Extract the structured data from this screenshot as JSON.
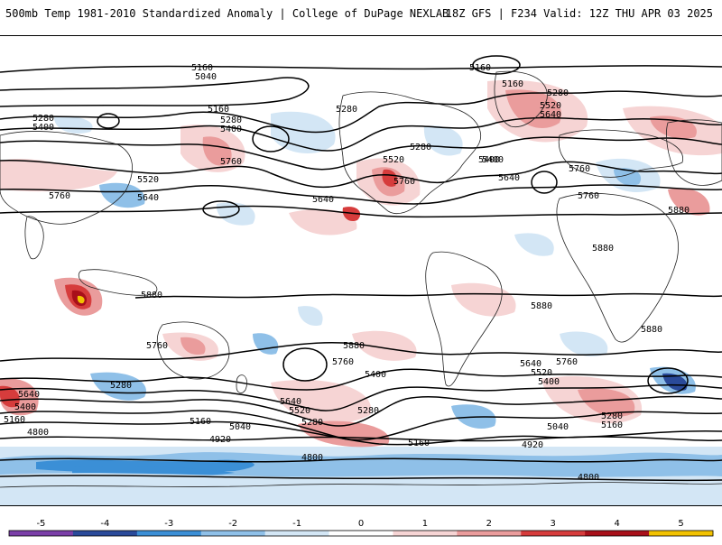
{
  "header": {
    "title_left": "500mb Temp 1981-2010 Standardized Anomaly | College of DuPage NEXLAB",
    "title_right": "18Z GFS | F234 Valid: 12Z THU APR 03 2025"
  },
  "map": {
    "height_labels": [
      {
        "text": "5160"
      },
      {
        "text": "5040"
      },
      {
        "text": "5160"
      },
      {
        "text": "5160"
      },
      {
        "text": "5280"
      },
      {
        "text": "5520"
      },
      {
        "text": "5640"
      },
      {
        "text": "5280"
      },
      {
        "text": "5400"
      },
      {
        "text": "5280"
      },
      {
        "text": "5400"
      },
      {
        "text": "5520"
      },
      {
        "text": "5640"
      },
      {
        "text": "5760"
      },
      {
        "text": "5160"
      },
      {
        "text": "5280"
      },
      {
        "text": "5400"
      },
      {
        "text": "5760"
      },
      {
        "text": "5280"
      },
      {
        "text": "5520"
      },
      {
        "text": "5760"
      },
      {
        "text": "5400"
      },
      {
        "text": "5640"
      },
      {
        "text": "5640"
      },
      {
        "text": "5760"
      },
      {
        "text": "5760"
      },
      {
        "text": "5880"
      },
      {
        "text": "5880"
      },
      {
        "text": "5880"
      },
      {
        "text": "5880"
      },
      {
        "text": "5880"
      },
      {
        "text": "5760"
      },
      {
        "text": "5880"
      },
      {
        "text": "5760"
      },
      {
        "text": "5640"
      },
      {
        "text": "5760"
      },
      {
        "text": "5520"
      },
      {
        "text": "5400"
      },
      {
        "text": "5280"
      },
      {
        "text": "5400"
      },
      {
        "text": "5640"
      },
      {
        "text": "5520"
      },
      {
        "text": "5280"
      },
      {
        "text": "5280"
      },
      {
        "text": "5160"
      },
      {
        "text": "5040"
      },
      {
        "text": "5160"
      },
      {
        "text": "5040"
      },
      {
        "text": "4920"
      },
      {
        "text": "4920"
      },
      {
        "text": "4800"
      },
      {
        "text": "4800"
      },
      {
        "text": "4800"
      },
      {
        "text": "5640"
      },
      {
        "text": "5400"
      },
      {
        "text": "5160"
      },
      {
        "text": "5280"
      },
      {
        "text": "5160"
      }
    ]
  },
  "colorbar": {
    "ticks": [
      "-5",
      "-4",
      "-3",
      "-2",
      "-1",
      "0",
      "1",
      "2",
      "3",
      "4",
      "5"
    ],
    "colors": {
      "minus5": "#7b3fa8",
      "minus4": "#2a4a9a",
      "minus3": "#3b8fd6",
      "minus2": "#8fc0e8",
      "minus1": "#d3e6f5",
      "zero": "#ffffff",
      "plus1": "#f6d4d4",
      "plus2": "#ea9c9c",
      "plus3": "#d63c3c",
      "plus4": "#a8101a",
      "plus5": "#f2c200"
    }
  }
}
